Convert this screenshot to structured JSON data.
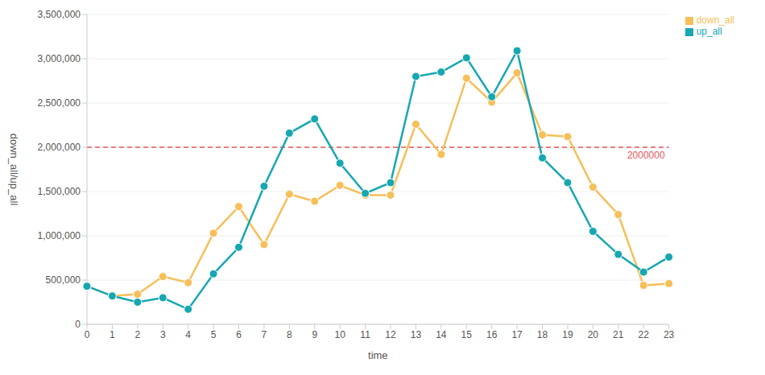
{
  "chart_data": {
    "type": "line",
    "x_label": "time",
    "y_label": "down_all/up_all",
    "categories": [
      "0",
      "1",
      "2",
      "3",
      "4",
      "5",
      "6",
      "7",
      "8",
      "9",
      "10",
      "11",
      "12",
      "13",
      "14",
      "15",
      "16",
      "17",
      "18",
      "19",
      "20",
      "21",
      "22",
      "23"
    ],
    "series": [
      {
        "name": "down_all",
        "color": "#f6bf59",
        "marker": "circle",
        "values": [
          430000,
          320000,
          340000,
          540000,
          470000,
          1030000,
          1330000,
          900000,
          1470000,
          1390000,
          1570000,
          1460000,
          1460000,
          2260000,
          1920000,
          2780000,
          2510000,
          2840000,
          2140000,
          2120000,
          1550000,
          1240000,
          440000,
          460000
        ]
      },
      {
        "name": "up_all",
        "color": "#17a7b1",
        "marker": "circle",
        "values": [
          430000,
          320000,
          250000,
          300000,
          170000,
          570000,
          870000,
          1560000,
          2160000,
          2320000,
          1820000,
          1480000,
          1600000,
          2800000,
          2850000,
          3010000,
          2570000,
          3090000,
          1880000,
          1600000,
          1050000,
          790000,
          590000,
          760000
        ]
      }
    ],
    "ylim": [
      0,
      3500000
    ],
    "yticks": [
      0,
      {
        "value": 500000,
        "label": "500,000"
      },
      {
        "value": 1000000,
        "label": "1,000,000"
      },
      {
        "value": 1500000,
        "label": "1,500,000"
      },
      {
        "value": 2000000,
        "label": "2,000,000"
      },
      {
        "value": 2500000,
        "label": "2,500,000"
      },
      {
        "value": 3000000,
        "label": "3,000,000"
      },
      {
        "value": 3500000,
        "label": "3,500,000"
      }
    ],
    "annotations": [
      {
        "y": 2000000,
        "label": "2000000",
        "color": "#e8555a",
        "line_style": "dashed"
      }
    ],
    "grid": true,
    "legend": "top-right"
  }
}
